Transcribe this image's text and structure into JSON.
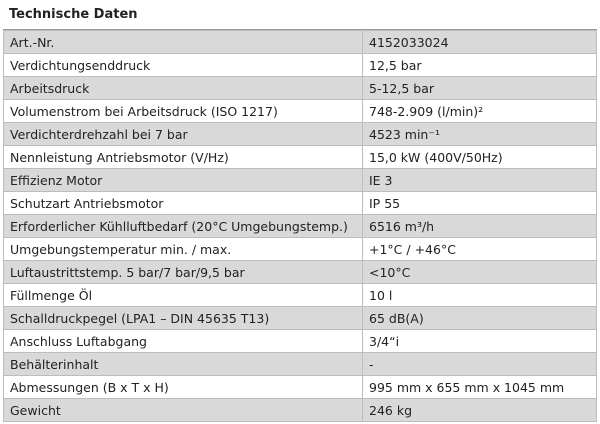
{
  "table": {
    "title": "Technische Daten",
    "rows": [
      [
        "Art.-Nr.",
        "4152033024"
      ],
      [
        "Verdichtungsenddruck",
        "12,5 bar"
      ],
      [
        "Arbeitsdruck",
        "5-12,5 bar"
      ],
      [
        "Volumenstrom bei Arbeitsdruck (ISO 1217)",
        "748-2.909 (l/min)²"
      ],
      [
        "Verdichterdrehzahl bei 7 bar",
        "4523 min⁻¹"
      ],
      [
        "Nennleistung Antriebsmotor (V/Hz)",
        "15,0 kW (400V/50Hz)"
      ],
      [
        "Effizienz Motor",
        "IE 3"
      ],
      [
        "Schutzart Antriebsmotor",
        "IP 55"
      ],
      [
        "Erforderlicher Kühlluftbedarf (20°C Umgebungstemp.)",
        "6516 m³/h"
      ],
      [
        "Umgebungstemperatur min. / max.",
        "+1°C / +46°C"
      ],
      [
        "Luftaustrittstemp. 5 bar/7 bar/9,5 bar",
        "<10°C"
      ],
      [
        "Füllmenge Öl",
        "10 l"
      ],
      [
        "Schalldruckpegel (LPA1 – DIN 45635 T13)",
        "65 dB(A)"
      ],
      [
        "Anschluss Luftabgang",
        "3/4“i"
      ],
      [
        "Behälterinhalt",
        "-"
      ],
      [
        "Abmessungen (B x T x H)",
        "995 mm x 655 mm x 1045 mm"
      ],
      [
        "Gewicht",
        "246 kg"
      ]
    ]
  }
}
